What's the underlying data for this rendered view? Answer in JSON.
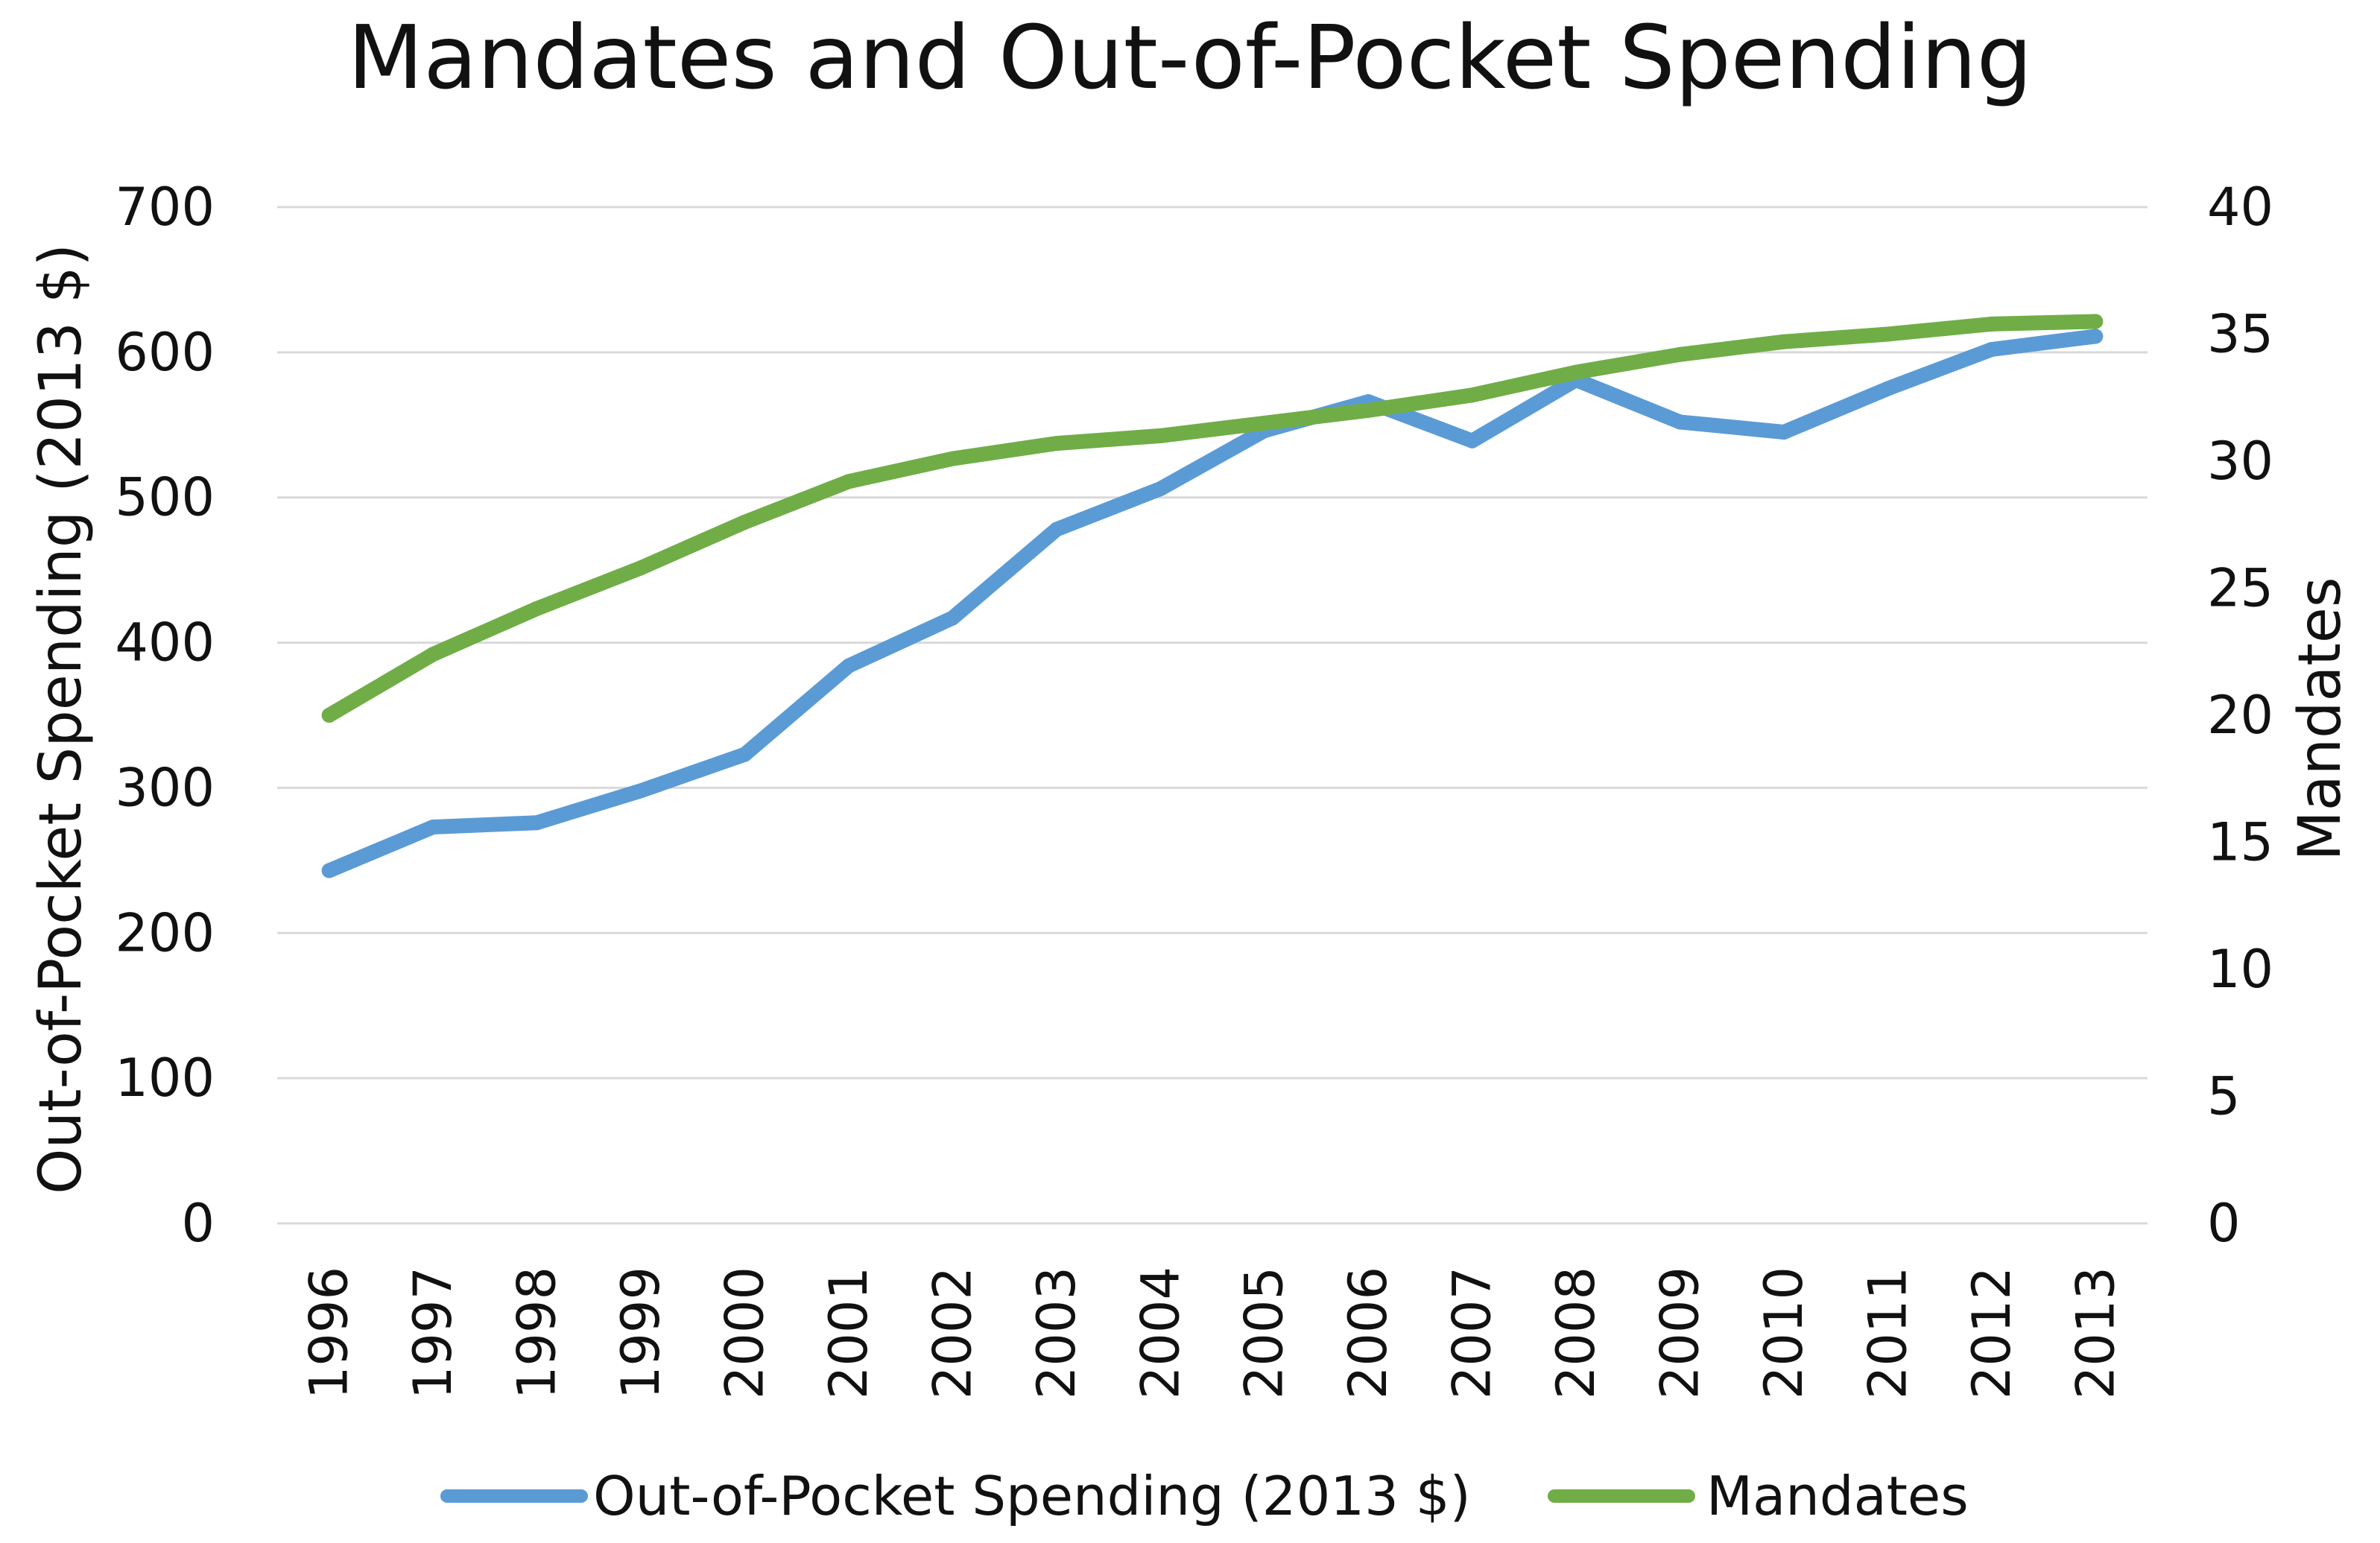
{
  "chart_data": {
    "type": "line",
    "title": "Mandates and Out-of-Pocket Spending",
    "xlabel": "",
    "ylabel": "Out-of-Pocket Spending (2013 $)",
    "y2label": "Mandates",
    "categories": [
      "1996",
      "1997",
      "1998",
      "1999",
      "2000",
      "2001",
      "2002",
      "2003",
      "2004",
      "2005",
      "2006",
      "2007",
      "2008",
      "2009",
      "2010",
      "2011",
      "2012",
      "2013"
    ],
    "ylim": [
      0,
      700
    ],
    "yticks": [
      "0",
      "100",
      "200",
      "300",
      "400",
      "500",
      "600",
      "700"
    ],
    "y2lim": [
      0,
      40
    ],
    "y2ticks": [
      "0",
      "5",
      "10",
      "15",
      "20",
      "25",
      "30",
      "35",
      "40"
    ],
    "grid": true,
    "legend_position": "bottom",
    "series": [
      {
        "name": "Out-of-Pocket Spending (2013 $)",
        "axis": "left",
        "color": "#5B9BD5",
        "values": [
          243,
          273,
          276,
          298,
          323,
          384,
          417,
          478,
          506,
          546,
          566,
          539,
          581,
          552,
          545,
          575,
          602,
          611
        ]
      },
      {
        "name": "Mandates",
        "axis": "right",
        "color": "#70AD47",
        "values": [
          20,
          22.4,
          24.2,
          25.8,
          27.6,
          29.2,
          30.1,
          30.7,
          31.0,
          31.5,
          32.0,
          32.6,
          33.5,
          34.2,
          34.7,
          35.0,
          35.4,
          35.5
        ]
      }
    ]
  }
}
